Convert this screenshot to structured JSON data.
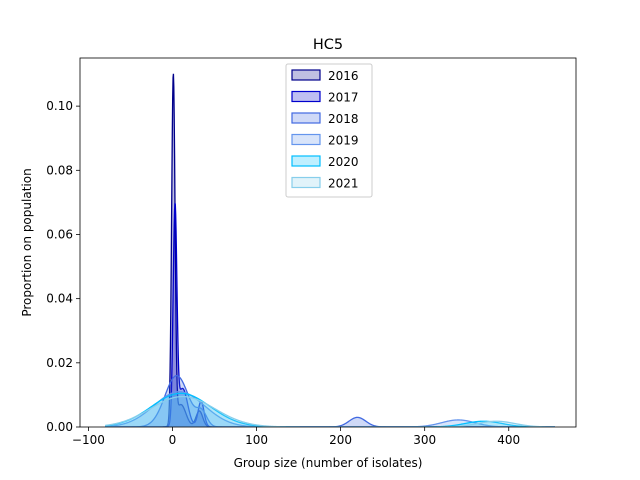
{
  "chart_data": {
    "type": "area",
    "title": "HC5",
    "xlabel": "Group size (number of isolates)",
    "ylabel": "Proportion on population",
    "xlim": [
      -110,
      480
    ],
    "ylim": [
      0,
      0.115
    ],
    "x_ticks": [
      -100,
      0,
      100,
      200,
      300,
      400
    ],
    "x_tick_labels": [
      "−100",
      "0",
      "100",
      "200",
      "300",
      "400"
    ],
    "y_ticks": [
      0.0,
      0.02,
      0.04,
      0.06,
      0.08,
      0.1
    ],
    "y_tick_labels": [
      "0.00",
      "0.02",
      "0.04",
      "0.06",
      "0.08",
      "0.10"
    ],
    "grid": false,
    "legend_position": "top-center",
    "series": [
      {
        "name": "2016",
        "fill": "#00008b",
        "fill_opacity": 0.25,
        "line": "#00008b",
        "components": [
          {
            "mu": 1,
            "sigma": 2.0,
            "amp": 0.108
          },
          {
            "mu": 10,
            "sigma": 6,
            "amp": 0.007
          },
          {
            "mu": 32,
            "sigma": 4,
            "amp": 0.005
          }
        ]
      },
      {
        "name": "2017",
        "fill": "#0000cd",
        "fill_opacity": 0.25,
        "line": "#0000cd",
        "components": [
          {
            "mu": 3,
            "sigma": 2.2,
            "amp": 0.066
          },
          {
            "mu": 12,
            "sigma": 6,
            "amp": 0.012
          },
          {
            "mu": 34,
            "sigma": 3.5,
            "amp": 0.008
          }
        ]
      },
      {
        "name": "2018",
        "fill": "#4169e1",
        "fill_opacity": 0.25,
        "line": "#4169e1",
        "components": [
          {
            "mu": 5,
            "sigma": 14,
            "amp": 0.016
          },
          {
            "mu": 35,
            "sigma": 6,
            "amp": 0.004
          },
          {
            "mu": 220,
            "sigma": 10,
            "amp": 0.003
          }
        ]
      },
      {
        "name": "2019",
        "fill": "#6495ed",
        "fill_opacity": 0.25,
        "line": "#6495ed",
        "components": [
          {
            "mu": 8,
            "sigma": 30,
            "amp": 0.011
          },
          {
            "mu": 340,
            "sigma": 20,
            "amp": 0.0022
          }
        ]
      },
      {
        "name": "2020",
        "fill": "#00bfff",
        "fill_opacity": 0.25,
        "line": "#00bfff",
        "components": [
          {
            "mu": 10,
            "sigma": 35,
            "amp": 0.0105
          },
          {
            "mu": 370,
            "sigma": 22,
            "amp": 0.0018
          }
        ]
      },
      {
        "name": "2021",
        "fill": "#87ceeb",
        "fill_opacity": 0.25,
        "line": "#87ceeb",
        "components": [
          {
            "mu": 12,
            "sigma": 38,
            "amp": 0.0095
          },
          {
            "mu": 385,
            "sigma": 22,
            "amp": 0.0018
          }
        ]
      }
    ]
  }
}
